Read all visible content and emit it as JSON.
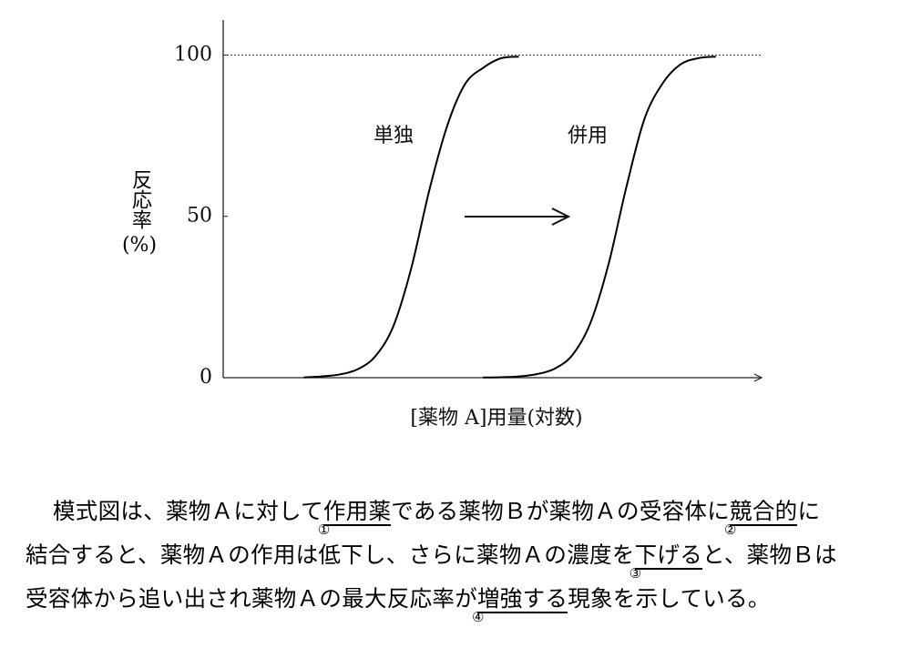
{
  "chart_data": {
    "type": "line",
    "ylabel": "反応率",
    "yunit": "(%)",
    "xlabel": "[薬物 A]用量(対数)",
    "categories": [
      null,
      null,
      null,
      null,
      null,
      null,
      null,
      null,
      null,
      null,
      null,
      null,
      null,
      null,
      null,
      null,
      null,
      null,
      null,
      null,
      null,
      null,
      null,
      null,
      null,
      null,
      null,
      null,
      null,
      null
    ],
    "series": [
      {
        "name": "単独",
        "color": "#000000",
        "values": [
          null,
          null,
          null,
          null,
          0.1,
          0.4,
          1,
          2.6,
          6.7,
          16,
          34,
          58,
          78,
          91,
          96,
          99,
          99.5,
          null,
          null,
          null,
          null,
          null,
          null,
          null,
          null,
          null,
          null,
          null,
          null,
          null
        ]
      },
      {
        "name": "併用",
        "color": "#000000",
        "values": [
          null,
          null,
          null,
          null,
          null,
          null,
          null,
          null,
          null,
          null,
          null,
          null,
          null,
          null,
          0.06,
          0.15,
          0.4,
          1.1,
          2.8,
          7.1,
          17,
          35,
          59,
          80,
          91,
          97,
          99,
          99.5,
          null,
          null
        ]
      }
    ],
    "ylim": [
      0,
      110
    ],
    "yticks": [
      0,
      50,
      100
    ],
    "hline": 100
  },
  "passage": {
    "lines": [
      [
        {
          "text": "模式図は、薬物Ａに対して"
        },
        {
          "text": "作用薬",
          "mark": "①"
        },
        {
          "text": "である薬物Ｂが薬物Ａの受容体に"
        },
        {
          "text": "競合的",
          "mark": "②"
        },
        {
          "text": "に"
        }
      ],
      [
        {
          "text": "結合すると、薬物Ａの作用は低下し、さらに薬物Ａの濃度を"
        },
        {
          "text": "下げる",
          "mark": "③"
        },
        {
          "text": "と、薬物Ｂは"
        }
      ],
      [
        {
          "text": "受容体から追い出され薬物Ａの最大反応率が"
        },
        {
          "text": "増強する",
          "mark": "④"
        },
        {
          "text": "現象を示している。"
        }
      ]
    ]
  }
}
